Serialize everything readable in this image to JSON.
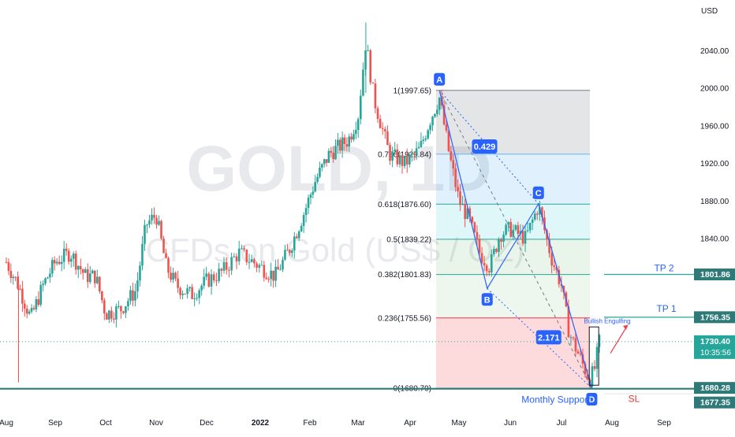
{
  "chart_data": {
    "type": "candlestick",
    "symbol": "GOLD, 1D",
    "subtitle": "CFDs on Gold (US$ / OZ)",
    "currency": "USD",
    "ylim": [
      1655,
      2088
    ],
    "y_ticks": [
      {
        "value": 2040,
        "label": "2040.00"
      },
      {
        "value": 2000,
        "label": "2000.00"
      },
      {
        "value": 1960,
        "label": "1960.00"
      },
      {
        "value": 1920,
        "label": "1920.00"
      },
      {
        "value": 1880,
        "label": "1880.00"
      },
      {
        "value": 1840,
        "label": "1840.00"
      }
    ],
    "x_ticks": [
      "Aug",
      "Sep",
      "Oct",
      "Nov",
      "Dec",
      "2022",
      "Feb",
      "Mar",
      "Apr",
      "May",
      "Jun",
      "Jul",
      "Aug",
      "Sep"
    ],
    "price_path": [
      [
        0,
        1815
      ],
      [
        0.25,
        1790
      ],
      [
        0.5,
        1755
      ],
      [
        0.75,
        1790
      ],
      [
        1,
        1815
      ],
      [
        1.3,
        1825
      ],
      [
        1.6,
        1800
      ],
      [
        1.8,
        1800
      ],
      [
        2.0,
        1760
      ],
      [
        2.3,
        1765
      ],
      [
        2.6,
        1785
      ],
      [
        2.8,
        1855
      ],
      [
        3.0,
        1865
      ],
      [
        3.2,
        1810
      ],
      [
        3.4,
        1790
      ],
      [
        3.7,
        1780
      ],
      [
        4.0,
        1795
      ],
      [
        4.3,
        1805
      ],
      [
        4.6,
        1825
      ],
      [
        5.0,
        1810
      ],
      [
        5.3,
        1800
      ],
      [
        5.6,
        1830
      ],
      [
        5.9,
        1870
      ],
      [
        6.1,
        1900
      ],
      [
        6.4,
        1930
      ],
      [
        6.8,
        1945
      ],
      [
        7.0,
        1970
      ],
      [
        7.15,
        2050
      ],
      [
        7.3,
        1990
      ],
      [
        7.6,
        1930
      ],
      [
        7.9,
        1920
      ],
      [
        8.2,
        1935
      ],
      [
        8.4,
        1965
      ],
      [
        8.6,
        1990
      ],
      [
        8.8,
        1930
      ],
      [
        9.0,
        1880
      ],
      [
        9.2,
        1860
      ],
      [
        9.4,
        1825
      ],
      [
        9.6,
        1810
      ],
      [
        9.8,
        1845
      ],
      [
        10.0,
        1850
      ],
      [
        10.3,
        1840
      ],
      [
        10.55,
        1875
      ],
      [
        10.8,
        1820
      ],
      [
        11.0,
        1790
      ],
      [
        11.15,
        1740
      ],
      [
        11.35,
        1715
      ],
      [
        11.55,
        1690
      ],
      [
        11.65,
        1700
      ],
      [
        11.75,
        1730
      ]
    ],
    "fib_levels": [
      {
        "label": "1(1997.65)",
        "value": 1997.65
      },
      {
        "label": "0.786(1929.84)",
        "value": 1929.84
      },
      {
        "label": "0.618(1876.60)",
        "value": 1876.6
      },
      {
        "label": "0.5(1839.22)",
        "value": 1839.22
      },
      {
        "label": "0.382(1801.83)",
        "value": 1801.83
      },
      {
        "label": "0.236(1755.56)",
        "value": 1755.56
      },
      {
        "label": "0(1680.79)",
        "value": 1680.79
      }
    ],
    "harmonic_points": [
      {
        "label": "A",
        "t": 8.6,
        "value": 1997.65
      },
      {
        "label": "B",
        "t": 9.55,
        "value": 1787
      },
      {
        "label": "C",
        "t": 10.55,
        "value": 1877
      },
      {
        "label": "D",
        "t": 11.6,
        "value": 1680.79
      }
    ],
    "ratios": [
      {
        "label": "0.429",
        "t": 9.5,
        "value": 1938
      },
      {
        "label": "2.171",
        "t": 10.75,
        "value": 1735
      }
    ],
    "annotations": {
      "bullish_engulfing": "Bullish Engulfing",
      "monthly_support": "Monthly Support",
      "tp1": "TP 1",
      "tp2": "TP 2",
      "sl": "SL"
    },
    "price_labels": [
      {
        "text": "1801.86",
        "value": 1801.86,
        "kind": "tp2"
      },
      {
        "text": "1756.35",
        "value": 1756.35,
        "kind": "tp1"
      },
      {
        "text": "1730.40",
        "value": 1730.4,
        "kind": "last",
        "countdown": "10:35:56"
      },
      {
        "text": "1680.28",
        "value": 1680.28,
        "kind": "support"
      },
      {
        "text": "1677.35",
        "value": 1677.35,
        "kind": "sl"
      }
    ],
    "last_price": 1730.4,
    "support_level": 1680.28,
    "tp1_level": 1756.35,
    "tp2_level": 1801.86,
    "sl_level": 1677.35
  },
  "colors": {
    "up": "#26a69a",
    "down": "#ef5350",
    "fib_lines": "#26a69a",
    "pattern": "#2962ff",
    "support": "#2f7a78",
    "sl": "#e53935"
  }
}
